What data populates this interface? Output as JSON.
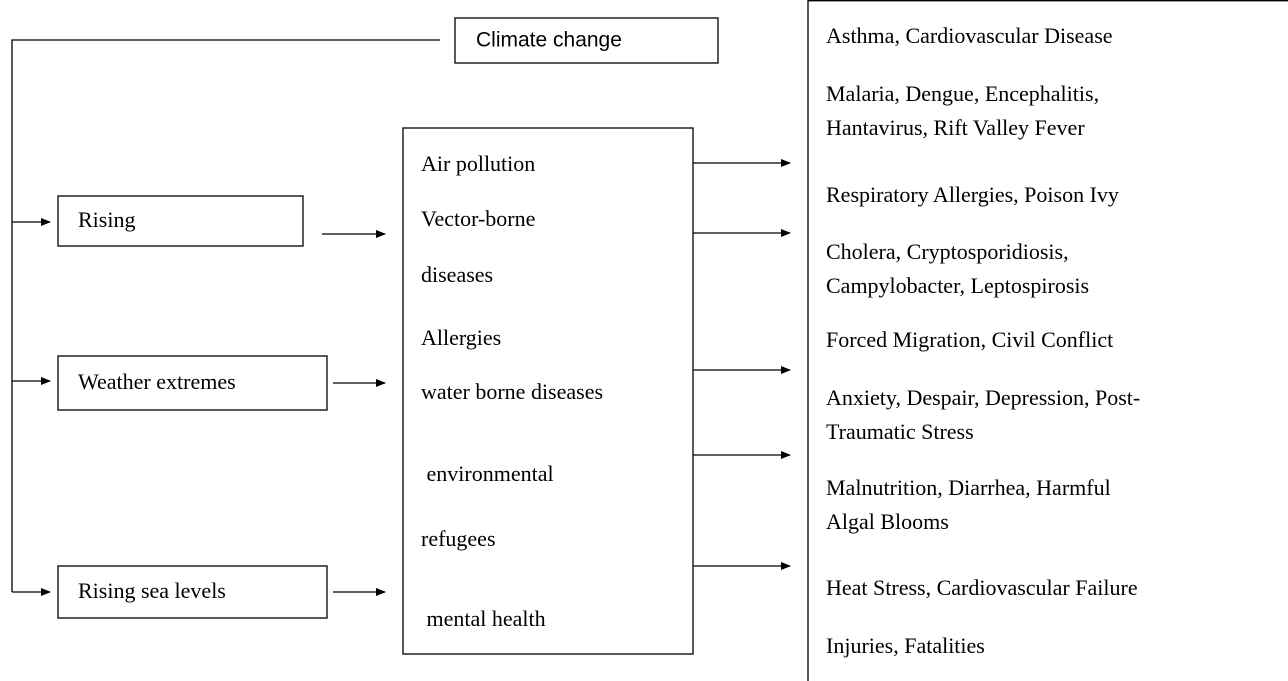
{
  "title": "Climate change",
  "causes": [
    "Rising",
    "Weather extremes",
    "Rising sea levels"
  ],
  "effects": [
    "Air pollution",
    "Vector-borne",
    "diseases",
    "Allergies",
    "water borne diseases",
    " environmental",
    "refugees",
    " mental health"
  ],
  "outcomes": [
    {
      "lines": [
        "Asthma, Cardiovascular Disease"
      ]
    },
    {
      "lines": [
        "Malaria, Dengue, Encephalitis,",
        "Hantavirus, Rift Valley Fever"
      ]
    },
    {
      "lines": [
        "Respiratory Allergies, Poison Ivy"
      ]
    },
    {
      "lines": [
        "Cholera, Cryptosporidiosis,",
        "Campylobacter, Leptospirosis"
      ]
    },
    {
      "lines": [
        "Forced Migration, Civil Conflict"
      ]
    },
    {
      "lines": [
        "Anxiety, Despair, Depression, Post-",
        "Traumatic Stress"
      ]
    },
    {
      "lines": [
        "Malnutrition, Diarrhea, Harmful",
        "Algal Blooms"
      ]
    },
    {
      "lines": [
        "Heat Stress, Cardiovascular Failure"
      ]
    },
    {
      "lines": [
        "Injuries, Fatalities"
      ]
    }
  ]
}
